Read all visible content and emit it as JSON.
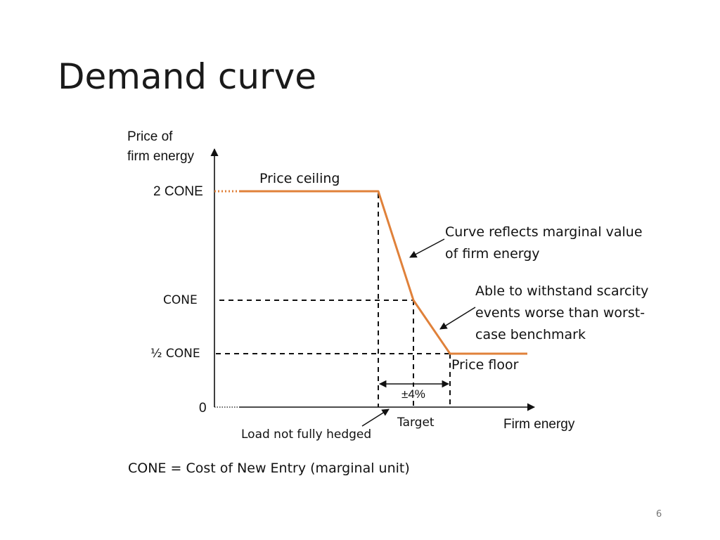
{
  "slide": {
    "title": "Demand curve",
    "footnote": "CONE = Cost of New Entry (marginal unit)",
    "page_number": "6"
  },
  "axes": {
    "y_label_line1": "Price of",
    "y_label_line2": "firm energy",
    "x_label": "Firm energy",
    "y_ticks": [
      "2 CONE",
      "CONE",
      "½ CONE",
      "0"
    ]
  },
  "annotations": {
    "price_ceiling": "Price ceiling",
    "price_floor": "Price floor",
    "curve_note_line1": "Curve reflects marginal value",
    "curve_note_line2": "of firm energy",
    "scarcity_line1": "Able to withstand scarcity",
    "scarcity_line2": "events worse than worst-",
    "scarcity_line3": "case benchmark",
    "band": "±4%",
    "target": "Target",
    "load_note": "Load not fully hedged"
  },
  "colors": {
    "curve": "#E0813A",
    "axis": "#111111",
    "dashed": "#111111"
  }
}
